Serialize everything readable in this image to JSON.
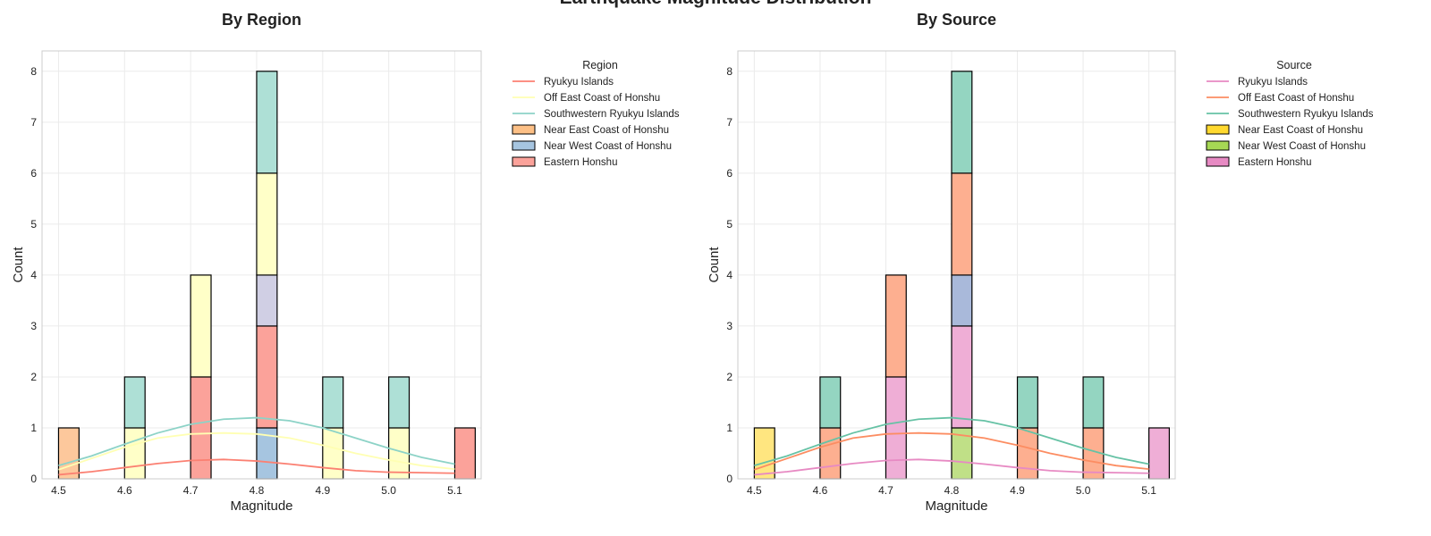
{
  "figure": {
    "suptitle": "Earthquake Magnitude Distribution"
  },
  "chart_data": [
    {
      "type": "histogram",
      "title": "By Region",
      "xlabel": "Magnitude",
      "ylabel": "Count",
      "xlim": [
        4.475,
        5.14
      ],
      "ylim": [
        0,
        8.4
      ],
      "xticks": [
        "4.5",
        "4.6",
        "4.7",
        "4.8",
        "4.9",
        "5.0",
        "5.1"
      ],
      "yticks": [
        "0",
        "1",
        "2",
        "3",
        "4",
        "5",
        "6",
        "7",
        "8"
      ],
      "grid": true,
      "bin_width": 0.031,
      "legend": {
        "title": "Region",
        "placement": "outside-right",
        "line_entries": [
          {
            "label": "Ryukyu Islands",
            "color": "#fb8072"
          },
          {
            "label": "Off East Coast of Honshu",
            "color": "#ffffb3"
          },
          {
            "label": "Southwestern Ryukyu Islands",
            "color": "#8dd3c7"
          }
        ],
        "patch_entries": [
          {
            "label": "Near East Coast of Honshu",
            "color": "#fdc086"
          },
          {
            "label": "Near West Coast of Honshu",
            "color": "#a6c5e0"
          },
          {
            "label": "Eastern Honshu",
            "color": "#fba29a"
          }
        ]
      },
      "bars": [
        {
          "x": 4.5,
          "segments": [
            {
              "value": 1,
              "color": "#fdc89c"
            }
          ]
        },
        {
          "x": 4.6,
          "segments": [
            {
              "value": 1,
              "color": "#ffffc8"
            },
            {
              "value": 1,
              "color": "#aee0d6"
            }
          ]
        },
        {
          "x": 4.7,
          "segments": [
            {
              "value": 2,
              "color": "#fba29a"
            },
            {
              "value": 2,
              "color": "#ffffc8"
            }
          ]
        },
        {
          "x": 4.8,
          "segments": [
            {
              "value": 1,
              "color": "#a6c5e0"
            },
            {
              "value": 2,
              "color": "#fba29a"
            },
            {
              "value": 1,
              "color": "#d0cfe4"
            },
            {
              "value": 2,
              "color": "#ffffc8"
            },
            {
              "value": 2,
              "color": "#aee0d6"
            }
          ]
        },
        {
          "x": 4.9,
          "segments": [
            {
              "value": 1,
              "color": "#ffffc8"
            },
            {
              "value": 1,
              "color": "#aee0d6"
            }
          ]
        },
        {
          "x": 5.0,
          "segments": [
            {
              "value": 1,
              "color": "#ffffc8"
            },
            {
              "value": 1,
              "color": "#aee0d6"
            }
          ]
        },
        {
          "x": 5.1,
          "segments": [
            {
              "value": 1,
              "color": "#fba29a"
            }
          ]
        }
      ],
      "kde": [
        {
          "name": "Ryukyu Islands",
          "color": "#fb8072",
          "x": [
            4.5,
            4.55,
            4.6,
            4.65,
            4.7,
            4.75,
            4.8,
            4.85,
            4.9,
            4.95,
            5.0,
            5.05,
            5.1
          ],
          "y": [
            0.08,
            0.14,
            0.22,
            0.3,
            0.36,
            0.38,
            0.35,
            0.29,
            0.22,
            0.16,
            0.13,
            0.12,
            0.11
          ]
        },
        {
          "name": "Off East Coast of Honshu",
          "color": "#ffffb3",
          "x": [
            4.5,
            4.55,
            4.6,
            4.65,
            4.7,
            4.75,
            4.8,
            4.85,
            4.9,
            4.95,
            5.0,
            5.05,
            5.1
          ],
          "y": [
            0.18,
            0.4,
            0.62,
            0.8,
            0.88,
            0.9,
            0.88,
            0.8,
            0.66,
            0.5,
            0.37,
            0.26,
            0.19
          ]
        },
        {
          "name": "Southwestern Ryukyu Islands",
          "color": "#8dd3c7",
          "x": [
            4.5,
            4.55,
            4.6,
            4.65,
            4.7,
            4.75,
            4.8,
            4.85,
            4.9,
            4.95,
            5.0,
            5.05,
            5.1
          ],
          "y": [
            0.26,
            0.45,
            0.68,
            0.9,
            1.07,
            1.17,
            1.2,
            1.14,
            1.0,
            0.8,
            0.6,
            0.42,
            0.29
          ]
        }
      ]
    },
    {
      "type": "histogram",
      "title": "By Source",
      "xlabel": "Magnitude",
      "ylabel": "Count",
      "xlim": [
        4.475,
        5.14
      ],
      "ylim": [
        0,
        8.4
      ],
      "xticks": [
        "4.5",
        "4.6",
        "4.7",
        "4.8",
        "4.9",
        "5.0",
        "5.1"
      ],
      "yticks": [
        "0",
        "1",
        "2",
        "3",
        "4",
        "5",
        "6",
        "7",
        "8"
      ],
      "grid": true,
      "bin_width": 0.031,
      "legend": {
        "title": "Source",
        "placement": "outside-right",
        "line_entries": [
          {
            "label": "Ryukyu Islands",
            "color": "#e78ac3"
          },
          {
            "label": "Off East Coast of Honshu",
            "color": "#fc8d62"
          },
          {
            "label": "Southwestern Ryukyu Islands",
            "color": "#66c2a5"
          }
        ],
        "patch_entries": [
          {
            "label": "Near East Coast of Honshu",
            "color": "#ffd92f"
          },
          {
            "label": "Near West Coast of Honshu",
            "color": "#a6d854"
          },
          {
            "label": "Eastern Honshu",
            "color": "#e78ac3"
          }
        ]
      },
      "bars": [
        {
          "x": 4.5,
          "segments": [
            {
              "value": 1,
              "color": "#ffe680"
            }
          ]
        },
        {
          "x": 4.6,
          "segments": [
            {
              "value": 1,
              "color": "#fdaf90"
            },
            {
              "value": 1,
              "color": "#94d5c1"
            }
          ]
        },
        {
          "x": 4.7,
          "segments": [
            {
              "value": 2,
              "color": "#efaed6"
            },
            {
              "value": 2,
              "color": "#fdaf90"
            }
          ]
        },
        {
          "x": 4.8,
          "segments": [
            {
              "value": 1,
              "color": "#c0e087"
            },
            {
              "value": 2,
              "color": "#efaed6"
            },
            {
              "value": 1,
              "color": "#a9b9da"
            },
            {
              "value": 2,
              "color": "#fdaf90"
            },
            {
              "value": 2,
              "color": "#94d5c1"
            }
          ]
        },
        {
          "x": 4.9,
          "segments": [
            {
              "value": 1,
              "color": "#fdaf90"
            },
            {
              "value": 1,
              "color": "#94d5c1"
            }
          ]
        },
        {
          "x": 5.0,
          "segments": [
            {
              "value": 1,
              "color": "#fdaf90"
            },
            {
              "value": 1,
              "color": "#94d5c1"
            }
          ]
        },
        {
          "x": 5.1,
          "segments": [
            {
              "value": 1,
              "color": "#efaed6"
            }
          ]
        }
      ],
      "kde": [
        {
          "name": "Ryukyu Islands",
          "color": "#e78ac3",
          "x": [
            4.5,
            4.55,
            4.6,
            4.65,
            4.7,
            4.75,
            4.8,
            4.85,
            4.9,
            4.95,
            5.0,
            5.05,
            5.1
          ],
          "y": [
            0.08,
            0.14,
            0.22,
            0.3,
            0.36,
            0.38,
            0.35,
            0.29,
            0.22,
            0.16,
            0.13,
            0.12,
            0.11
          ]
        },
        {
          "name": "Off East Coast of Honshu",
          "color": "#fc8d62",
          "x": [
            4.5,
            4.55,
            4.6,
            4.65,
            4.7,
            4.75,
            4.8,
            4.85,
            4.9,
            4.95,
            5.0,
            5.05,
            5.1
          ],
          "y": [
            0.18,
            0.4,
            0.62,
            0.8,
            0.88,
            0.9,
            0.88,
            0.8,
            0.66,
            0.5,
            0.37,
            0.26,
            0.19
          ]
        },
        {
          "name": "Southwestern Ryukyu Islands",
          "color": "#66c2a5",
          "x": [
            4.5,
            4.55,
            4.6,
            4.65,
            4.7,
            4.75,
            4.8,
            4.85,
            4.9,
            4.95,
            5.0,
            5.05,
            5.1
          ],
          "y": [
            0.26,
            0.45,
            0.68,
            0.9,
            1.07,
            1.17,
            1.2,
            1.14,
            1.0,
            0.8,
            0.6,
            0.42,
            0.29
          ]
        }
      ]
    }
  ]
}
